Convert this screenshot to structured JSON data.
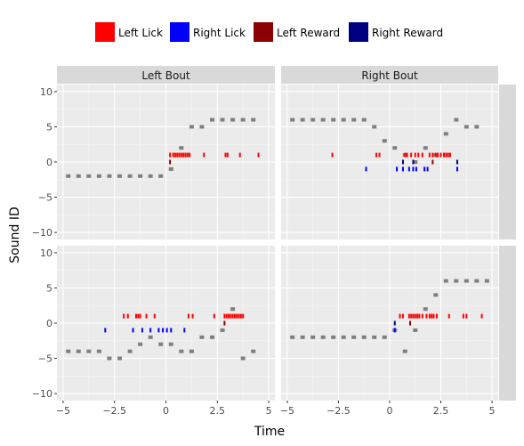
{
  "chart_data": {
    "type": "scatter",
    "xlabel": "Time",
    "ylabel": "Sound ID",
    "xlim": [
      -5.3,
      5.3
    ],
    "ylim": [
      -11,
      11
    ],
    "xticks": [
      -5,
      -2.5,
      0,
      2.5,
      5
    ],
    "xtick_labels": [
      "−5",
      "−2.5",
      "0",
      "2.5",
      "5"
    ],
    "yticks": [
      -10,
      -5,
      0,
      5,
      10
    ],
    "ytick_labels": [
      "−10",
      "−5",
      "0",
      "5",
      "10"
    ],
    "legend_position": "top",
    "legend": [
      {
        "name": "Left Lick",
        "color": "#ff0000"
      },
      {
        "name": "Right Lick",
        "color": "#0000ff"
      },
      {
        "name": "Left Reward",
        "color": "#8b0000"
      },
      {
        "name": "Right Reward",
        "color": "#000080"
      }
    ],
    "panels": [
      {
        "col_label": "Left Bout",
        "row": 0,
        "col": 0,
        "sounds": [
          [
            -4.75,
            -2
          ],
          [
            -4.25,
            -2
          ],
          [
            -3.75,
            -2
          ],
          [
            -3.25,
            -2
          ],
          [
            -2.75,
            -2
          ],
          [
            -2.25,
            -2
          ],
          [
            -1.75,
            -2
          ],
          [
            -1.25,
            -2
          ],
          [
            -0.75,
            -2
          ],
          [
            -0.25,
            -2
          ],
          [
            0.25,
            -1
          ],
          [
            0.75,
            2
          ],
          [
            1.25,
            5
          ],
          [
            1.75,
            5
          ],
          [
            2.25,
            6
          ],
          [
            2.75,
            6
          ],
          [
            3.25,
            6
          ],
          [
            3.75,
            6
          ],
          [
            4.25,
            6
          ]
        ],
        "left_licks": [
          0.2,
          0.35,
          0.45,
          0.55,
          0.65,
          0.75,
          0.85,
          0.95,
          1.05,
          1.15,
          1.85,
          2.9,
          3.0,
          3.6,
          4.5
        ],
        "right_licks": [],
        "left_rewards": [
          0.2
        ],
        "right_rewards": []
      },
      {
        "col_label": "Right Bout",
        "row": 0,
        "col": 1,
        "sounds": [
          [
            -4.75,
            6
          ],
          [
            -4.25,
            6
          ],
          [
            -3.75,
            6
          ],
          [
            -3.25,
            6
          ],
          [
            -2.75,
            6
          ],
          [
            -2.25,
            6
          ],
          [
            -1.75,
            6
          ],
          [
            -1.25,
            6
          ],
          [
            -0.75,
            5
          ],
          [
            -0.25,
            3
          ],
          [
            0.25,
            2
          ],
          [
            0.75,
            1
          ],
          [
            1.25,
            0
          ],
          [
            1.75,
            2
          ],
          [
            2.25,
            1
          ],
          [
            2.75,
            4
          ],
          [
            3.25,
            6
          ],
          [
            3.75,
            5
          ],
          [
            4.25,
            5
          ]
        ],
        "left_licks": [
          -2.8,
          -0.65,
          -0.5,
          0.75,
          0.85,
          1.05,
          1.25,
          1.4,
          1.6,
          1.95,
          2.1,
          2.25,
          2.35,
          2.5,
          2.65,
          2.75,
          2.85,
          2.95
        ],
        "right_licks": [
          -1.15,
          0.35,
          0.65,
          0.95,
          1.15,
          1.3,
          1.7,
          1.85,
          3.3
        ],
        "left_rewards": [
          2.1
        ],
        "right_rewards": [
          0.65,
          1.15,
          3.3
        ]
      },
      {
        "col_label": "",
        "row": 1,
        "col": 0,
        "sounds": [
          [
            -4.75,
            -4
          ],
          [
            -4.25,
            -4
          ],
          [
            -3.75,
            -4
          ],
          [
            -3.25,
            -4
          ],
          [
            -2.75,
            -5
          ],
          [
            -2.25,
            -5
          ],
          [
            -1.75,
            -4
          ],
          [
            -1.25,
            -3
          ],
          [
            -0.75,
            -2
          ],
          [
            -0.25,
            -3
          ],
          [
            0.25,
            -3
          ],
          [
            0.75,
            -4
          ],
          [
            1.25,
            -4
          ],
          [
            1.75,
            -2
          ],
          [
            2.25,
            -2
          ],
          [
            2.75,
            -1
          ],
          [
            3.25,
            2
          ],
          [
            3.75,
            -5
          ],
          [
            4.25,
            -4
          ]
        ],
        "left_licks": [
          -2.05,
          -1.85,
          -1.45,
          -1.35,
          -1.25,
          -0.95,
          -0.55,
          1.1,
          1.3,
          2.35,
          2.85,
          2.95,
          3.05,
          3.15,
          3.25,
          3.35,
          3.45,
          3.55,
          3.65,
          3.75
        ],
        "right_licks": [
          -2.95,
          -1.6,
          -1.15,
          -0.75,
          -0.35,
          -0.15,
          0.05,
          0.25,
          0.9
        ],
        "left_rewards": [
          2.85
        ],
        "right_rewards": []
      },
      {
        "col_label": "",
        "row": 1,
        "col": 1,
        "sounds": [
          [
            -4.75,
            -2
          ],
          [
            -4.25,
            -2
          ],
          [
            -3.75,
            -2
          ],
          [
            -3.25,
            -2
          ],
          [
            -2.75,
            -2
          ],
          [
            -2.25,
            -2
          ],
          [
            -1.75,
            -2
          ],
          [
            -1.25,
            -2
          ],
          [
            -0.75,
            -2
          ],
          [
            -0.25,
            -2
          ],
          [
            0.25,
            -1
          ],
          [
            0.75,
            -4
          ],
          [
            1.25,
            -1
          ],
          [
            1.75,
            2
          ],
          [
            2.25,
            4
          ],
          [
            2.75,
            6
          ],
          [
            3.25,
            6
          ],
          [
            3.75,
            6
          ],
          [
            4.25,
            6
          ],
          [
            4.75,
            6
          ]
        ],
        "left_licks": [
          0.5,
          0.65,
          0.95,
          1.05,
          1.15,
          1.25,
          1.35,
          1.45,
          1.6,
          1.8,
          1.95,
          2.05,
          2.15,
          2.3,
          2.9,
          3.6,
          3.75,
          4.5
        ],
        "right_licks": [
          0.25
        ],
        "left_rewards": [
          1.0
        ],
        "right_rewards": [
          0.25
        ]
      }
    ]
  }
}
